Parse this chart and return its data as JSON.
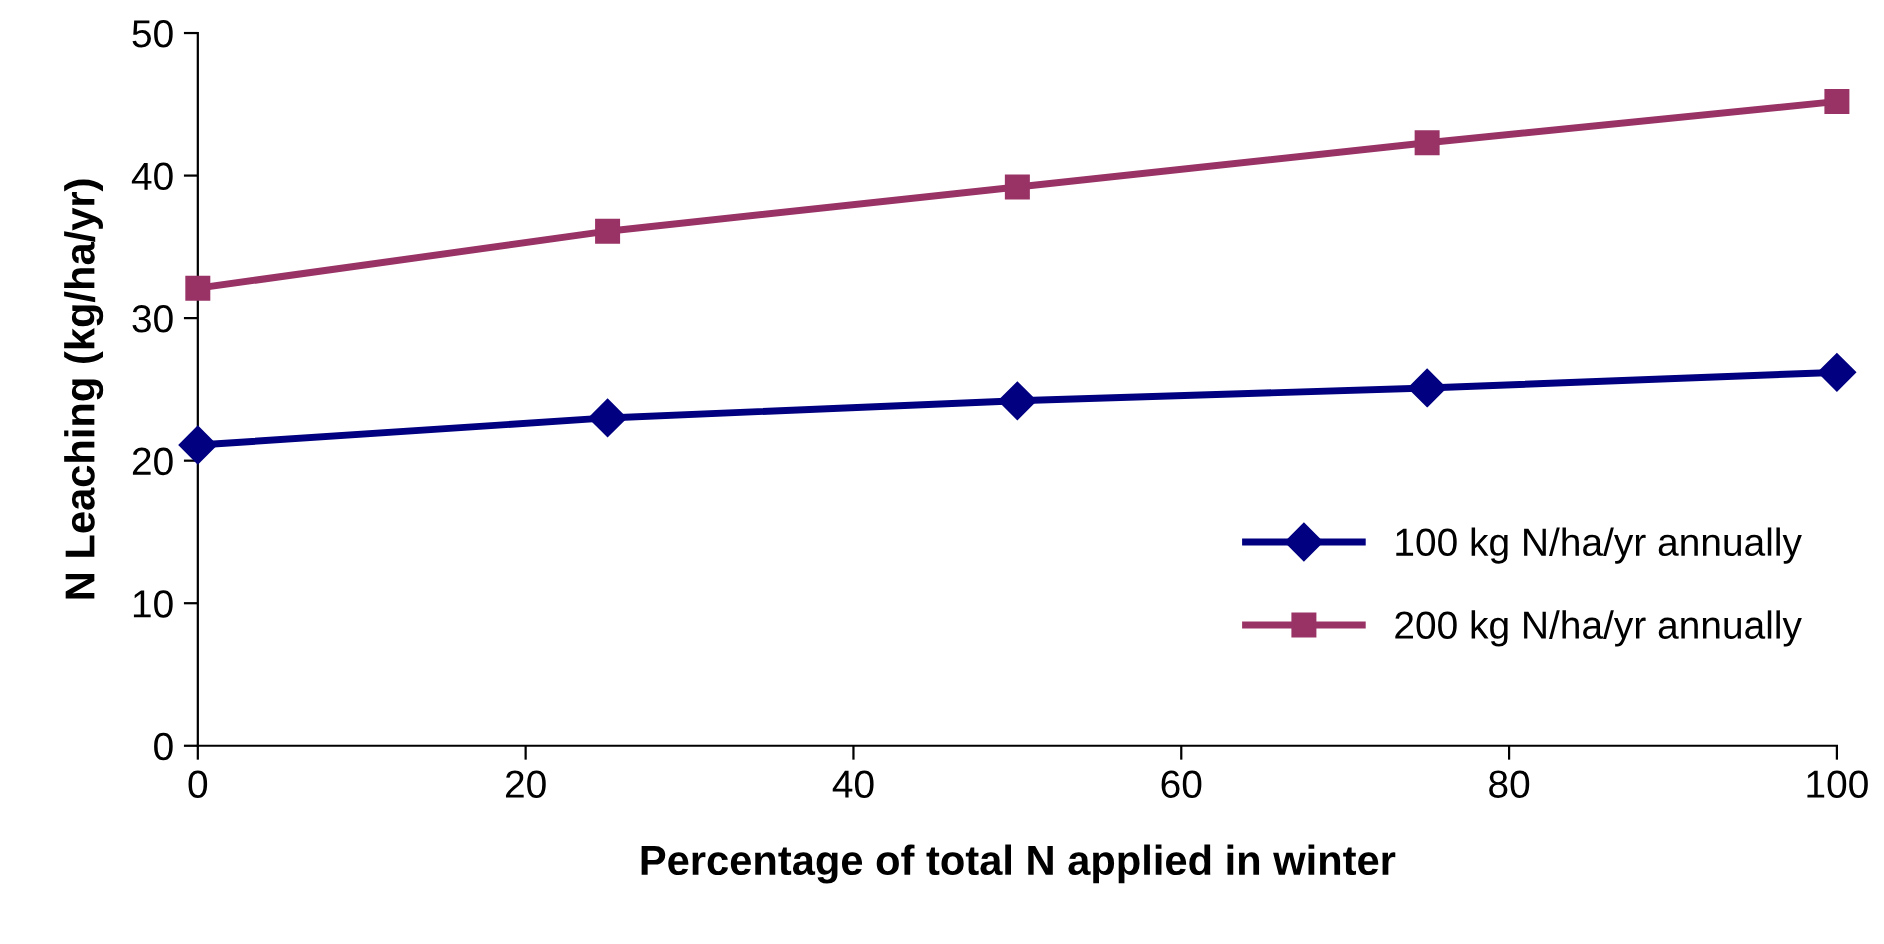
{
  "chart_data": {
    "type": "line",
    "xlabel": "Percentage of total N applied in winter",
    "ylabel": "N Leaching (kg/ha/yr)",
    "x": [
      0,
      25,
      50,
      75,
      100
    ],
    "series": [
      {
        "name": "100 kg N/ha/yr annually",
        "color": "#000080",
        "marker": "diamond",
        "values": [
          21.1,
          23.0,
          24.2,
          25.1,
          26.2
        ]
      },
      {
        "name": "200 kg N/ha/yr annually",
        "color": "#993366",
        "marker": "square",
        "values": [
          32.1,
          36.1,
          39.2,
          42.3,
          45.2
        ]
      }
    ],
    "xlim": [
      0,
      100
    ],
    "xticks": [
      0,
      20,
      40,
      60,
      80,
      100
    ],
    "ylim": [
      0,
      50
    ],
    "yticks": [
      0,
      10,
      20,
      30,
      40,
      50
    ],
    "grid": false,
    "legend": "right",
    "line_style": "solid"
  }
}
